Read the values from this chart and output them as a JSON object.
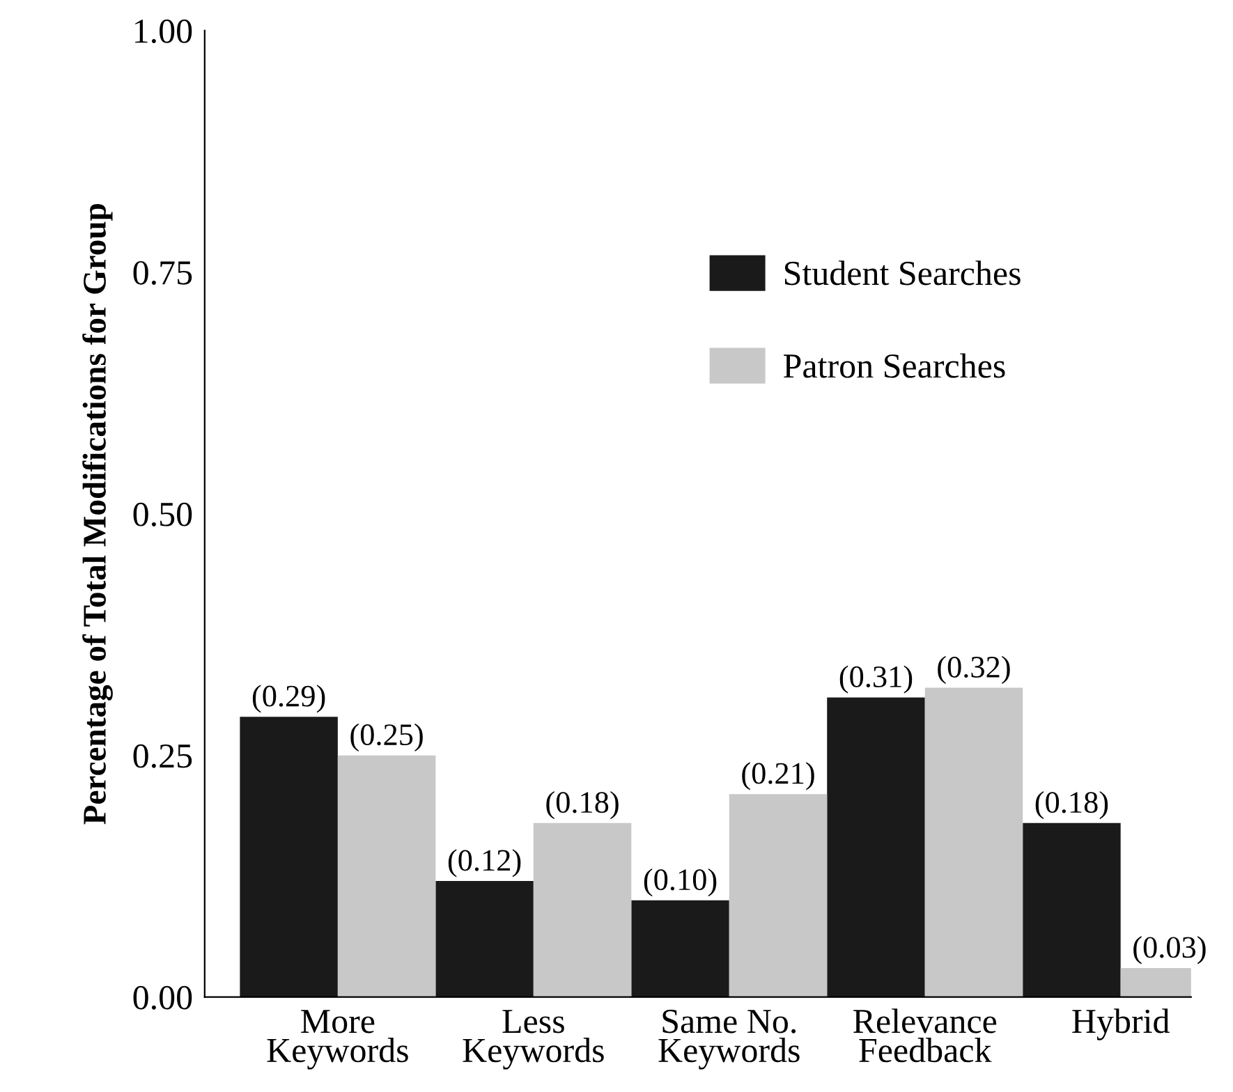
{
  "chart_data": {
    "type": "bar",
    "ylabel": "Percentage of Total Modifications for Group",
    "categories": [
      "More\nKeywords",
      "Less\nKeywords",
      "Same No.\nKeywords",
      "Relevance\nFeedback",
      "Hybrid"
    ],
    "series": [
      {
        "name": "Student Searches",
        "color": "#1a1a1a",
        "values": [
          0.29,
          0.12,
          0.1,
          0.31,
          0.18
        ],
        "value_labels": [
          "(0.29)",
          "(0.12)",
          "(0.10)",
          "(0.31)",
          "(0.18)"
        ]
      },
      {
        "name": "Patron Searches",
        "color": "#c8c8c8",
        "values": [
          0.25,
          0.18,
          0.21,
          0.32,
          0.03
        ],
        "value_labels": [
          "(0.25)",
          "(0.18)",
          "(0.21)",
          "(0.32)",
          "(0.03)"
        ]
      }
    ],
    "ylim": [
      0,
      1
    ],
    "yticks": [
      {
        "value": 0,
        "label": "0.00"
      },
      {
        "value": 0.25,
        "label": "0.25"
      },
      {
        "value": 0.5,
        "label": "0.50"
      },
      {
        "value": 0.75,
        "label": "0.75"
      },
      {
        "value": 1,
        "label": "1.00"
      }
    ],
    "grid": false,
    "legend": "top right"
  }
}
